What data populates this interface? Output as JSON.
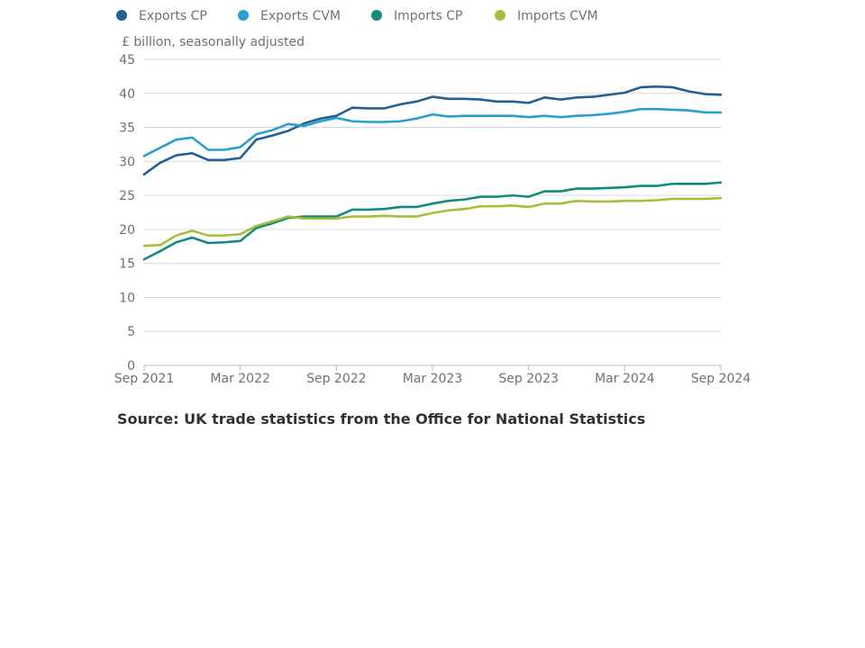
{
  "chart_data": {
    "type": "line",
    "title": "",
    "ylabel": "£ billion, seasonally adjusted",
    "xlabel": "",
    "ylim": [
      0,
      45
    ],
    "yticks": [
      0,
      5,
      10,
      15,
      20,
      25,
      30,
      35,
      40,
      45
    ],
    "xticks": [
      {
        "label": "Sep 2021",
        "index": 0
      },
      {
        "label": "Mar 2022",
        "index": 6
      },
      {
        "label": "Sep 2022",
        "index": 12
      },
      {
        "label": "Mar 2023",
        "index": 18
      },
      {
        "label": "Sep 2023",
        "index": 24
      },
      {
        "label": "Mar 2024",
        "index": 30
      },
      {
        "label": "Sep 2024",
        "index": 36
      }
    ],
    "x": [
      "Sep 2021",
      "Oct 2021",
      "Nov 2021",
      "Dec 2021",
      "Jan 2022",
      "Feb 2022",
      "Mar 2022",
      "Apr 2022",
      "May 2022",
      "Jun 2022",
      "Jul 2022",
      "Aug 2022",
      "Sep 2022",
      "Oct 2022",
      "Nov 2022",
      "Dec 2022",
      "Jan 2023",
      "Feb 2023",
      "Mar 2023",
      "Apr 2023",
      "May 2023",
      "Jun 2023",
      "Jul 2023",
      "Aug 2023",
      "Sep 2023",
      "Oct 2023",
      "Nov 2023",
      "Dec 2023",
      "Jan 2024",
      "Feb 2024",
      "Mar 2024",
      "Apr 2024",
      "May 2024",
      "Jun 2024",
      "Jul 2024",
      "Aug 2024",
      "Sep 2024"
    ],
    "grid": true,
    "legend_position": "top-left",
    "series": [
      {
        "name": "Exports CP",
        "color": "#206095",
        "values": [
          28.1,
          29.8,
          30.9,
          31.2,
          30.2,
          30.2,
          30.5,
          33.2,
          33.8,
          34.5,
          35.6,
          36.3,
          36.7,
          37.9,
          37.8,
          37.8,
          38.4,
          38.8,
          39.5,
          39.2,
          39.2,
          39.1,
          38.8,
          38.8,
          38.6,
          39.4,
          39.1,
          39.4,
          39.5,
          39.8,
          40.1,
          40.9,
          41.0,
          40.9,
          40.3,
          39.9,
          39.8
        ]
      },
      {
        "name": "Exports CVM",
        "color": "#27a0cc",
        "values": [
          30.8,
          32.0,
          33.2,
          33.5,
          31.7,
          31.7,
          32.1,
          34.0,
          34.6,
          35.5,
          35.2,
          35.9,
          36.4,
          35.9,
          35.8,
          35.8,
          35.9,
          36.3,
          36.9,
          36.6,
          36.7,
          36.7,
          36.7,
          36.7,
          36.5,
          36.7,
          36.5,
          36.7,
          36.8,
          37.0,
          37.3,
          37.7,
          37.7,
          37.6,
          37.5,
          37.2,
          37.2
        ]
      },
      {
        "name": "Imports CP",
        "color": "#118c7b",
        "values": [
          15.6,
          16.8,
          18.1,
          18.8,
          18.0,
          18.1,
          18.3,
          20.2,
          20.9,
          21.7,
          21.9,
          21.9,
          21.9,
          22.9,
          22.9,
          23.0,
          23.3,
          23.3,
          23.8,
          24.2,
          24.4,
          24.8,
          24.8,
          25.0,
          24.8,
          25.6,
          25.6,
          26.0,
          26.0,
          26.1,
          26.2,
          26.4,
          26.4,
          26.7,
          26.7,
          26.7,
          26.9
        ]
      },
      {
        "name": "Imports CVM",
        "color": "#a8bd3a",
        "values": [
          17.6,
          17.7,
          19.1,
          19.8,
          19.1,
          19.1,
          19.3,
          20.5,
          21.2,
          21.9,
          21.6,
          21.6,
          21.6,
          21.9,
          21.9,
          22.0,
          21.9,
          21.9,
          22.4,
          22.8,
          23.0,
          23.4,
          23.4,
          23.5,
          23.3,
          23.8,
          23.8,
          24.2,
          24.1,
          24.1,
          24.2,
          24.2,
          24.3,
          24.5,
          24.5,
          24.5,
          24.6
        ]
      }
    ]
  },
  "source": "Source: UK trade statistics from the Office for National Statistics"
}
